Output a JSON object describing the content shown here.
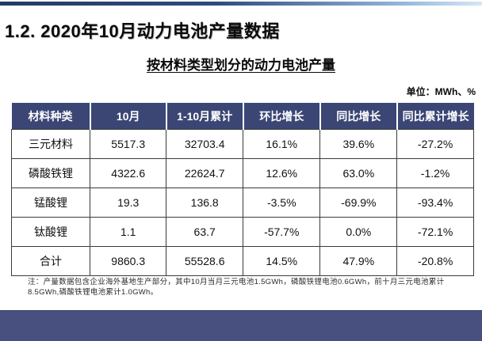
{
  "page": {
    "title": "1.2. 2020年10月动力电池产量数据",
    "subtitle": "按材料类型划分的动力电池产量",
    "unit_label": "单位：MWh、%",
    "footnote": "注：产量数据包含企业海外基地生产部分，其中10月当月三元电池1.5GWh，磷酸铁锂电池0.6GWh，前十月三元电池累计8.5GWh,磷酸铁锂电池累计1.0GWh。"
  },
  "table": {
    "headers": [
      "材料种类",
      "10月",
      "1-10月累计",
      "环比增长",
      "同比增长",
      "同比累计增长"
    ],
    "rows": [
      [
        "三元材料",
        "5517.3",
        "32703.4",
        "16.1%",
        "39.6%",
        "-27.2%"
      ],
      [
        "磷酸铁锂",
        "4322.6",
        "22624.7",
        "12.6%",
        "63.0%",
        "-1.2%"
      ],
      [
        "锰酸锂",
        "19.3",
        "136.8",
        "-3.5%",
        "-69.9%",
        "-93.4%"
      ],
      [
        "钛酸锂",
        "1.1",
        "63.7",
        "-57.7%",
        "0.0%",
        "-72.1%"
      ],
      [
        "合计",
        "9860.3",
        "55528.6",
        "14.5%",
        "47.9%",
        "-20.8%"
      ]
    ]
  },
  "chart_data": {
    "type": "table",
    "title": "按材料类型划分的动力电池产量",
    "unit": "MWh、%",
    "columns": [
      "材料种类",
      "10月",
      "1-10月累计",
      "环比增长",
      "同比增长",
      "同比累计增长"
    ],
    "rows": [
      {
        "material": "三元材料",
        "oct": 5517.3,
        "jan_oct_cumulative": 32703.4,
        "mom_growth_pct": 16.1,
        "yoy_growth_pct": 39.6,
        "yoy_cumulative_growth_pct": -27.2
      },
      {
        "material": "磷酸铁锂",
        "oct": 4322.6,
        "jan_oct_cumulative": 22624.7,
        "mom_growth_pct": 12.6,
        "yoy_growth_pct": 63.0,
        "yoy_cumulative_growth_pct": -1.2
      },
      {
        "material": "锰酸锂",
        "oct": 19.3,
        "jan_oct_cumulative": 136.8,
        "mom_growth_pct": -3.5,
        "yoy_growth_pct": -69.9,
        "yoy_cumulative_growth_pct": -93.4
      },
      {
        "material": "钛酸锂",
        "oct": 1.1,
        "jan_oct_cumulative": 63.7,
        "mom_growth_pct": -57.7,
        "yoy_growth_pct": 0.0,
        "yoy_cumulative_growth_pct": -72.1
      },
      {
        "material": "合计",
        "oct": 9860.3,
        "jan_oct_cumulative": 55528.6,
        "mom_growth_pct": 14.5,
        "yoy_growth_pct": 47.9,
        "yoy_cumulative_growth_pct": -20.8
      }
    ]
  },
  "colors": {
    "header_background": "#3b4675",
    "bottom_band": "#47507f",
    "accent_bar_start": "#233a66",
    "accent_bar_end": "#d6e6f4",
    "text": "#0a0a0a"
  }
}
